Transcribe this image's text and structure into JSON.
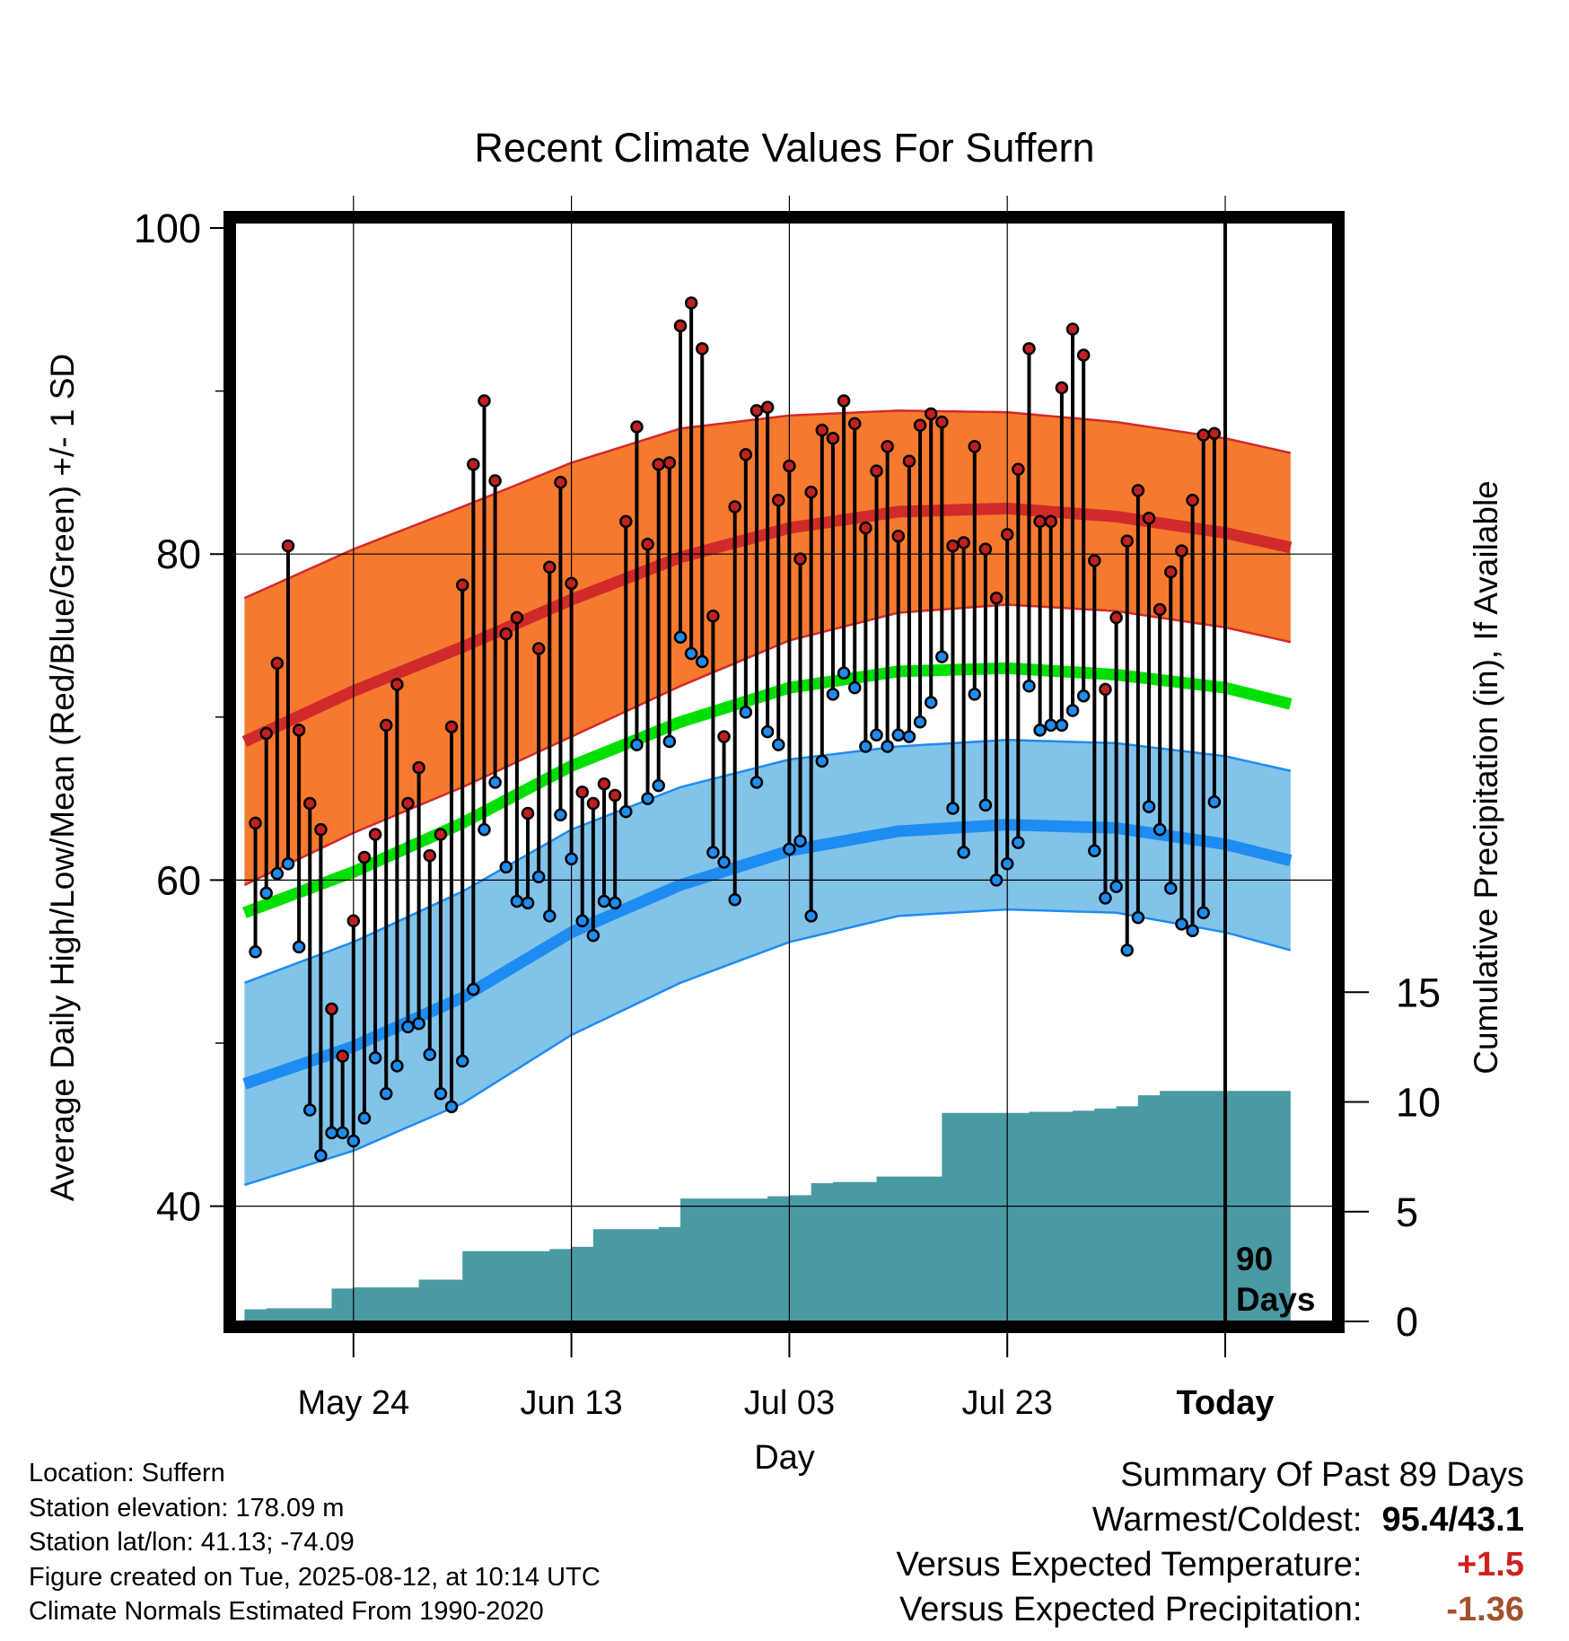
{
  "chart_data": {
    "type": "line",
    "title": "Recent Climate Values For Suffern",
    "xlabel": "Day",
    "ylabel": "Average Daily High/Low/Mean (Red/Blue/Green) +/- 1 SD",
    "y2label": "Cumulative Precipitation (in), If Available",
    "ylim": [
      33,
      100
    ],
    "y2lim": [
      0,
      20
    ],
    "xlim": [
      -90,
      6
    ],
    "x_tick_labels": [
      "May 24",
      "Jun 13",
      "Jul 03",
      "Jul 23",
      "Today"
    ],
    "x_tick_days": [
      -80,
      -60,
      -40,
      -20,
      0
    ],
    "y_ticks": [
      40,
      60,
      80,
      100
    ],
    "y2_ticks": [
      0,
      5,
      10,
      15
    ],
    "grid": true,
    "today_marker_label": [
      "90",
      "Days"
    ],
    "normals": {
      "day": [
        -90,
        -80,
        -70,
        -60,
        -50,
        -40,
        -30,
        -20,
        -10,
        0,
        6
      ],
      "high_mean": [
        68.5,
        71.6,
        74.3,
        77.2,
        79.8,
        81.6,
        82.6,
        82.8,
        82.3,
        81.3,
        80.4
      ],
      "high_sd": [
        8.8,
        8.7,
        8.6,
        8.4,
        7.9,
        6.9,
        6.2,
        5.9,
        5.8,
        5.8,
        5.8
      ],
      "low_mean": [
        47.5,
        49.8,
        52.8,
        56.8,
        59.7,
        61.8,
        63.0,
        63.4,
        63.2,
        62.2,
        61.2
      ],
      "low_sd": [
        6.2,
        6.4,
        6.5,
        6.3,
        6.0,
        5.6,
        5.2,
        5.2,
        5.2,
        5.4,
        5.5
      ],
      "mean_mean": [
        58.0,
        60.5,
        63.5,
        67.0,
        69.7,
        71.8,
        72.8,
        73.0,
        72.6,
        71.8,
        70.8
      ],
      "colors": {
        "high_band": "#f57a2f",
        "high_line": "#d12a2a",
        "low_band": "#82c3ea",
        "low_line": "#1e8cf0",
        "mean_line": "#00e000"
      }
    },
    "series": [
      {
        "name": "Daily High",
        "color": "#c02020",
        "values": [
          63.5,
          69.0,
          73.3,
          80.5,
          69.2,
          64.7,
          63.1,
          52.1,
          49.2,
          57.5,
          61.4,
          62.8,
          69.5,
          72.0,
          64.7,
          66.9,
          61.5,
          62.8,
          69.4,
          78.1,
          85.5,
          89.4,
          84.5,
          75.1,
          76.1,
          64.1,
          74.2,
          79.2,
          84.4,
          78.2,
          65.4,
          64.7,
          65.9,
          65.2,
          82.0,
          87.8,
          80.6,
          85.5,
          85.6,
          94.0,
          95.4,
          92.6,
          76.2,
          68.8,
          82.9,
          86.1,
          88.8,
          89.0,
          83.3,
          85.4,
          79.7,
          83.8,
          87.6,
          87.1,
          89.4,
          88.0,
          81.6,
          85.1,
          86.6,
          81.1,
          85.7,
          87.9,
          88.6,
          88.1,
          80.5,
          80.7,
          86.6,
          80.3,
          77.3,
          81.2,
          85.2,
          92.6,
          82.0,
          82.0,
          90.2,
          93.8,
          92.2,
          79.6,
          71.7,
          76.1,
          80.8,
          83.9,
          82.2,
          76.6,
          78.9,
          80.2,
          83.3,
          87.3,
          87.4
        ],
        "lows": [
          55.6,
          59.2,
          60.4,
          61.0,
          55.9,
          45.9,
          43.1,
          44.5,
          44.5,
          44.0,
          45.4,
          49.1,
          46.9,
          48.6,
          51.0,
          51.2,
          49.3,
          46.9,
          46.1,
          48.9,
          53.3,
          63.1,
          66.0,
          60.8,
          58.7,
          58.6,
          60.2,
          57.8,
          64.0,
          61.3,
          57.5,
          56.6,
          58.7,
          58.6,
          64.2,
          68.3,
          65.0,
          65.8,
          68.5,
          74.9,
          73.9,
          73.4,
          61.7,
          61.1,
          58.8,
          70.3,
          66.0,
          69.1,
          68.3,
          61.9,
          62.4,
          57.8,
          67.3,
          71.4,
          72.7,
          71.8,
          68.2,
          68.9,
          68.2,
          68.9,
          68.8,
          69.7,
          70.9,
          73.7,
          64.4,
          61.7,
          71.4,
          64.6,
          60.0,
          61.0,
          62.3,
          71.9,
          69.2,
          69.5,
          69.5,
          70.4,
          71.3,
          61.8,
          58.9,
          59.6,
          55.7,
          57.7,
          64.5,
          63.1,
          59.5,
          57.3,
          56.9,
          58.0,
          64.8
        ]
      },
      {
        "name": "Cumulative Precipitation",
        "color": "#4a9aa4",
        "x": [
          -90,
          -88,
          -86,
          -84,
          -82,
          -80,
          -78,
          -76,
          -74,
          -72,
          -70,
          -68,
          -66,
          -64,
          -62,
          -60,
          -58,
          -56,
          -54,
          -52,
          -50,
          -48,
          -46,
          -44,
          -42,
          -40,
          -38,
          -36,
          -34,
          -32,
          -30,
          -28,
          -26,
          -24,
          -22,
          -20,
          -18,
          -16,
          -14,
          -12,
          -10,
          -8,
          -6,
          -4,
          -2,
          0,
          2,
          4,
          6
        ],
        "values": [
          0.55,
          0.6,
          0.6,
          0.6,
          1.5,
          1.55,
          1.55,
          1.55,
          1.9,
          1.9,
          3.2,
          3.2,
          3.2,
          3.2,
          3.3,
          3.4,
          4.2,
          4.2,
          4.2,
          4.3,
          5.6,
          5.6,
          5.6,
          5.6,
          5.7,
          5.75,
          6.3,
          6.35,
          6.35,
          6.6,
          6.6,
          6.6,
          9.5,
          9.5,
          9.5,
          9.5,
          9.55,
          9.55,
          9.6,
          9.7,
          9.8,
          10.3,
          10.5,
          10.5,
          10.5,
          10.5,
          10.5,
          10.5,
          10.5
        ]
      }
    ]
  },
  "info": {
    "location": "Location: Suffern",
    "elevation": "Station elevation: 178.09 m",
    "latlon": "Station lat/lon: 41.13; -74.09",
    "created": "Figure created on Tue, 2025-08-12, at 10:14 UTC",
    "normals": "Climate Normals Estimated From 1990-2020"
  },
  "summary": {
    "heading": "Summary Of Past 89 Days",
    "warmest_label": "Warmest/Coldest:",
    "warmest_value": "95.4/43.1",
    "temp_label": "Versus Expected Temperature:",
    "temp_value": "+1.5",
    "temp_color": "#d02020",
    "precip_label": "Versus Expected Precipitation:",
    "precip_value": "-1.36",
    "precip_color": "#a0522d"
  }
}
